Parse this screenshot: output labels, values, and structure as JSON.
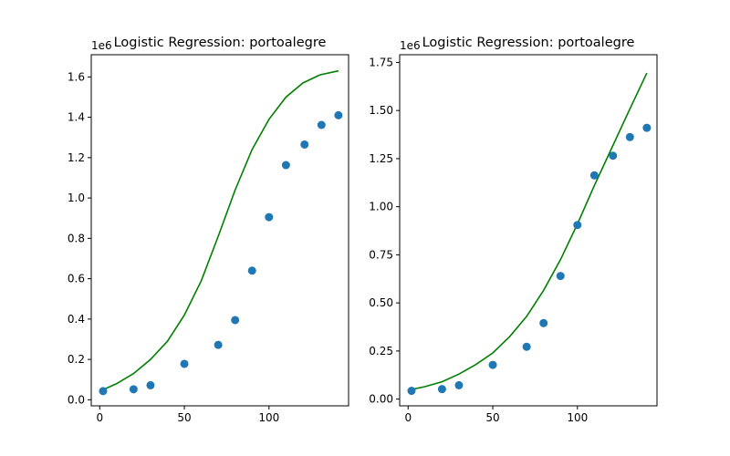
{
  "chart_data": [
    {
      "type": "scatter",
      "title": "Logistic Regression: portoalegre",
      "offset_label": "1e6",
      "xlabel": "",
      "ylabel": "",
      "xlim": [
        -5,
        147
      ],
      "ylim": [
        -0.03,
        1.71
      ],
      "xticks": [
        0,
        50,
        100
      ],
      "yticks": [
        0.0,
        0.2,
        0.4,
        0.6,
        0.8,
        1.0,
        1.2,
        1.4,
        1.6
      ],
      "ytick_labels": [
        "0.0",
        "0.2",
        "0.4",
        "0.6",
        "0.8",
        "1.0",
        "1.2",
        "1.4",
        "1.6"
      ],
      "grid": false,
      "points": {
        "color": "#1f77b4",
        "x": [
          2,
          20,
          30,
          50,
          70,
          80,
          90,
          100,
          110,
          121,
          131,
          141
        ],
        "y": [
          0.043,
          0.052,
          0.072,
          0.178,
          0.272,
          0.395,
          0.64,
          0.905,
          1.163,
          1.265,
          1.362,
          1.41
        ]
      },
      "curve": {
        "color": "#008000",
        "x": [
          2,
          10,
          20,
          30,
          40,
          50,
          60,
          70,
          80,
          90,
          100,
          110,
          120,
          130,
          141
        ],
        "y": [
          0.05,
          0.08,
          0.13,
          0.2,
          0.29,
          0.42,
          0.59,
          0.81,
          1.04,
          1.24,
          1.39,
          1.5,
          1.57,
          1.61,
          1.63
        ]
      }
    },
    {
      "type": "scatter",
      "title": "Logistic Regression: portoalegre",
      "offset_label": "1e6",
      "xlabel": "",
      "ylabel": "",
      "xlim": [
        -5,
        147
      ],
      "ylim": [
        -0.035,
        1.79
      ],
      "xticks": [
        0,
        50,
        100
      ],
      "yticks": [
        0.0,
        0.25,
        0.5,
        0.75,
        1.0,
        1.25,
        1.5,
        1.75
      ],
      "ytick_labels": [
        "0.00",
        "0.25",
        "0.50",
        "0.75",
        "1.00",
        "1.25",
        "1.50",
        "1.75"
      ],
      "grid": false,
      "points": {
        "color": "#1f77b4",
        "x": [
          2,
          20,
          30,
          50,
          70,
          80,
          90,
          100,
          110,
          121,
          131,
          141
        ],
        "y": [
          0.043,
          0.052,
          0.072,
          0.178,
          0.272,
          0.395,
          0.64,
          0.905,
          1.163,
          1.265,
          1.362,
          1.41
        ]
      },
      "curve": {
        "color": "#008000",
        "x": [
          2,
          10,
          20,
          30,
          40,
          50,
          60,
          70,
          80,
          90,
          100,
          110,
          120,
          130,
          141
        ],
        "y": [
          0.05,
          0.065,
          0.09,
          0.13,
          0.18,
          0.24,
          0.325,
          0.43,
          0.565,
          0.725,
          0.91,
          1.11,
          1.3,
          1.49,
          1.695
        ]
      }
    }
  ]
}
